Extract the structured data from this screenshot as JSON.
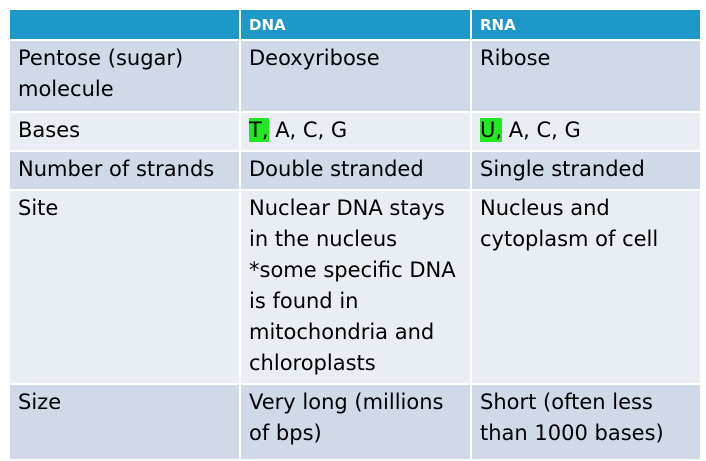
{
  "table": {
    "headers": [
      "",
      "DNA",
      "RNA"
    ],
    "rows": [
      {
        "label": "Pentose (sugar) molecule",
        "dna": "Deoxyribose",
        "rna": "Ribose"
      },
      {
        "label": "Bases",
        "dna_highlight": "T,",
        "dna_rest": " A, C, G",
        "rna_highlight": "U,",
        "rna_rest": " A, C, G"
      },
      {
        "label": "Number of strands",
        "dna": "Double stranded",
        "rna": "Single stranded"
      },
      {
        "label": "Site",
        "dna": "Nuclear DNA stays in the nucleus *some specific DNA is found in mitochondria and chloroplasts",
        "rna": "Nucleus and cytoplasm of cell"
      },
      {
        "label": "Size",
        "dna": "Very long (millions of bps)",
        "rna": "Short (often less than 1000 bases)"
      }
    ]
  },
  "colors": {
    "header_bg": "#1e97c9",
    "row_dark": "#cfd9e8",
    "row_light": "#e9eef5",
    "highlight": "#22e822"
  }
}
